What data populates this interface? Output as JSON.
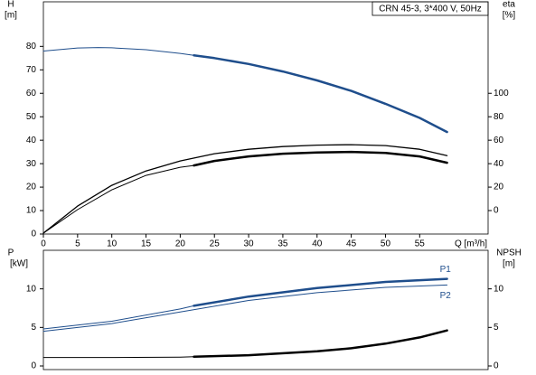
{
  "chart_data": [
    {
      "type": "line",
      "title": "CRN 45-3, 3*400 V, 50Hz",
      "ylabel": "H",
      "yunit": "[m]",
      "y2label": "eta",
      "y2unit": "[%]",
      "xlabel": "Q [m³/h]",
      "xlim": [
        0,
        65
      ],
      "xticks": [
        0,
        5,
        10,
        15,
        20,
        25,
        30,
        35,
        40,
        45,
        50,
        55
      ],
      "ylim": [
        0,
        99
      ],
      "yticks": [
        0,
        10,
        20,
        30,
        40,
        50,
        60,
        70,
        80
      ],
      "y2lim": [
        -20,
        178
      ],
      "y2ticks": [
        0,
        20,
        40,
        60,
        80,
        100
      ],
      "series": [
        {
          "color": "#1f4e8c",
          "width": 1,
          "x": [
            0,
            5,
            8,
            10,
            15,
            20,
            22
          ],
          "values": [
            78,
            79.3,
            79.5,
            79.4,
            78.6,
            77,
            76.2
          ]
        },
        {
          "color": "#1f4e8c",
          "width": 2.5,
          "x": [
            22,
            25,
            30,
            35,
            40,
            45,
            50,
            55,
            59
          ],
          "values": [
            76.2,
            75,
            72.5,
            69.3,
            65.5,
            61,
            55.5,
            49.5,
            43.5
          ]
        },
        {
          "color": "#000000",
          "width": 1.3,
          "axis": "y2",
          "x": [
            0,
            5,
            10,
            15,
            20,
            25,
            30,
            35,
            40,
            45,
            50,
            55,
            59
          ],
          "values": [
            -19.2,
            3.8,
            21.5,
            33.8,
            42.3,
            48.5,
            52.3,
            54.6,
            55.8,
            56.2,
            55.4,
            52.3,
            46.9
          ]
        },
        {
          "color": "#000000",
          "width": 1,
          "axis": "y2",
          "x": [
            0,
            5,
            10,
            15,
            20,
            22
          ],
          "values": [
            -19.2,
            0.8,
            17.7,
            30,
            36.9,
            38.5
          ]
        },
        {
          "color": "#000000",
          "width": 2.5,
          "axis": "y2",
          "x": [
            22,
            25,
            30,
            35,
            40,
            45,
            50,
            55,
            59
          ],
          "values": [
            38.5,
            42.3,
            46.2,
            48.5,
            49.6,
            50,
            49.2,
            46.2,
            40.8
          ]
        }
      ]
    },
    {
      "type": "line",
      "ylabel": "P",
      "yunit": "[kW]",
      "y2label": "NPSH",
      "y2unit": "[m]",
      "xlim": [
        0,
        65
      ],
      "ylim": [
        0,
        15
      ],
      "yticks": [
        0,
        5,
        10
      ],
      "y2lim": [
        0,
        15
      ],
      "y2ticks": [
        0,
        5,
        10
      ],
      "series": [
        {
          "color": "#1f4e8c",
          "width": 1,
          "x": [
            0,
            10,
            20,
            22
          ],
          "values": [
            4.8,
            5.8,
            7.4,
            7.8
          ]
        },
        {
          "name": "P1",
          "color": "#1f4e8c",
          "width": 2.5,
          "x": [
            22,
            30,
            40,
            50,
            59
          ],
          "values": [
            7.8,
            9.0,
            10.1,
            10.9,
            11.3
          ]
        },
        {
          "name": "P2",
          "color": "#1f4e8c",
          "width": 1,
          "x": [
            0,
            10,
            20,
            30,
            40,
            50,
            59
          ],
          "values": [
            4.5,
            5.5,
            7.0,
            8.5,
            9.5,
            10.2,
            10.5
          ]
        },
        {
          "color": "#000000",
          "width": 1,
          "axis": "y2",
          "x": [
            0,
            10,
            20,
            22
          ],
          "values": [
            1.1,
            1.1,
            1.15,
            1.2
          ]
        },
        {
          "color": "#000000",
          "width": 2.5,
          "axis": "y2",
          "x": [
            22,
            30,
            40,
            45,
            50,
            55,
            59
          ],
          "values": [
            1.2,
            1.4,
            1.9,
            2.3,
            2.9,
            3.7,
            4.6
          ]
        }
      ]
    }
  ]
}
